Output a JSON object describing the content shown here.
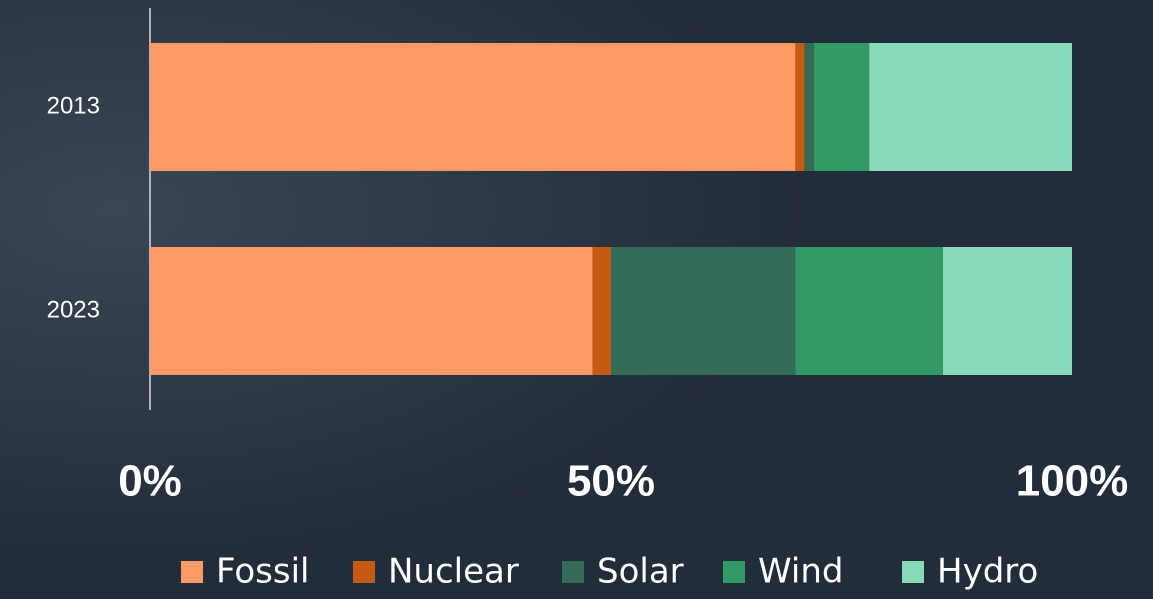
{
  "chart_data": {
    "type": "stacked-barh",
    "categories": [
      "2013",
      "2023"
    ],
    "series": [
      {
        "name": "Fossil",
        "color": "#ff9966",
        "values": [
          70,
          48
        ]
      },
      {
        "name": "Nuclear",
        "color": "#c55a11",
        "values": [
          1,
          2
        ]
      },
      {
        "name": "Solar",
        "color": "#336b58",
        "values": [
          1,
          20
        ]
      },
      {
        "name": "Wind",
        "color": "#339966",
        "values": [
          6,
          16
        ]
      },
      {
        "name": "Hydro",
        "color": "#88d9b8",
        "values": [
          22,
          14
        ]
      }
    ],
    "xlim": [
      0,
      100
    ],
    "xticks": [
      {
        "value": 0,
        "label": "0%"
      },
      {
        "value": 50,
        "label": "50%"
      },
      {
        "value": 100,
        "label": "100%"
      }
    ],
    "legend": "bottom"
  }
}
